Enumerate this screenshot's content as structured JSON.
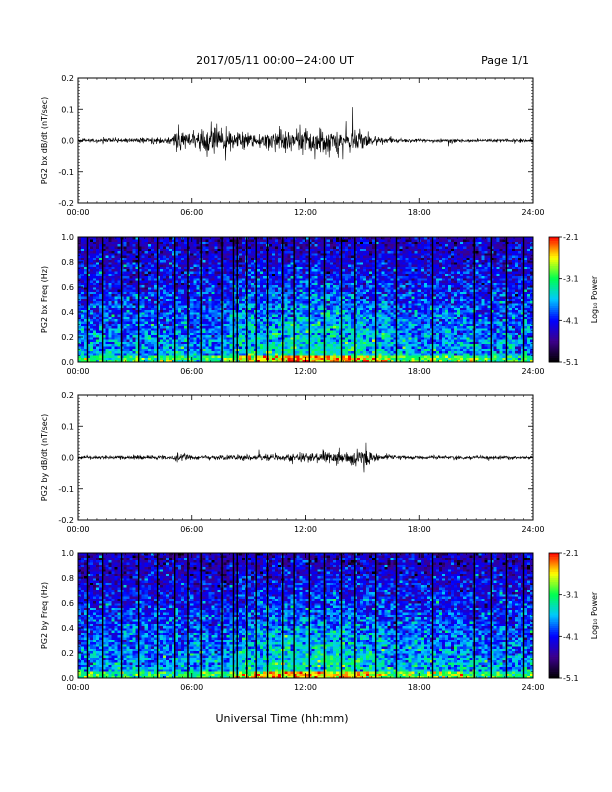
{
  "header": {
    "title": "2017/05/11  00:00−24:00 UT",
    "page": "Page 1/1"
  },
  "xlabel": "Universal Time (hh:mm)",
  "chart_data": [
    {
      "type": "line",
      "ylabel": "PG2 bx dB/dt (nT/sec)",
      "xlim": [
        "00:00",
        "24:00"
      ],
      "ylim": [
        -0.2,
        0.2
      ],
      "xticks": [
        "00:00",
        "06:00",
        "12:00",
        "18:00",
        "24:00"
      ],
      "yticks": [
        "-0.2",
        "-0.1",
        "0.0",
        "0.1",
        "0.2"
      ],
      "envelope": {
        "hours": [
          0,
          1,
          2,
          3,
          4,
          5,
          5.2,
          6,
          6.7,
          7,
          7.5,
          8,
          8.5,
          9,
          9.5,
          10,
          10.5,
          11,
          11.5,
          12,
          12.5,
          13,
          13.5,
          14,
          14.5,
          15,
          15.5,
          16,
          17,
          18,
          19,
          20,
          21,
          22,
          23,
          24
        ],
        "amplitude": [
          0.006,
          0.007,
          0.008,
          0.009,
          0.01,
          0.015,
          0.045,
          0.03,
          0.04,
          0.05,
          0.04,
          0.035,
          0.03,
          0.025,
          0.025,
          0.035,
          0.04,
          0.045,
          0.04,
          0.045,
          0.04,
          0.04,
          0.04,
          0.045,
          0.05,
          0.045,
          0.02,
          0.01,
          0.007,
          0.006,
          0.006,
          0.006,
          0.006,
          0.006,
          0.006,
          0.006
        ]
      }
    },
    {
      "type": "heatmap",
      "ylabel": "PG2 bx Freq (Hz)",
      "xlim": [
        "00:00",
        "24:00"
      ],
      "ylim": [
        0.0,
        1.0
      ],
      "xticks": [
        "00:00",
        "06:00",
        "12:00",
        "18:00",
        "24:00"
      ],
      "yticks": [
        "0.0",
        "0.2",
        "0.4",
        "0.6",
        "0.8",
        "1.0"
      ],
      "colorbar": {
        "label": "Log₁₀ Power",
        "ticks": [
          "-2.1",
          "-3.1",
          "-4.1",
          "-5.1"
        ],
        "range": [
          -5.1,
          -2.1
        ]
      },
      "gap_hours": [
        0.5,
        1.3,
        2.3,
        3.2,
        4.2,
        5.1,
        5.8,
        6.5,
        7.6,
        8.2,
        8.4,
        8.9,
        9.4,
        10.0,
        10.8,
        11.4,
        12.2,
        13.0,
        13.9,
        14.6,
        15.7,
        16.8,
        18.7,
        20.9,
        21.8,
        22.6,
        23.5
      ]
    },
    {
      "type": "line",
      "ylabel": "PG2 by dB/dt (nT/sec)",
      "xlim": [
        "00:00",
        "24:00"
      ],
      "ylim": [
        -0.2,
        0.2
      ],
      "xticks": [
        "00:00",
        "06:00",
        "12:00",
        "18:00",
        "24:00"
      ],
      "yticks": [
        "-0.2",
        "-0.1",
        "0.0",
        "0.1",
        "0.2"
      ],
      "envelope": {
        "hours": [
          0,
          1,
          2,
          3,
          4,
          5,
          5.3,
          5.8,
          6,
          7,
          8,
          9,
          10,
          11,
          12,
          13,
          13.5,
          14,
          14.5,
          15,
          15.2,
          15.5,
          16,
          17,
          18,
          19,
          20,
          21,
          22,
          23,
          24
        ],
        "amplitude": [
          0.005,
          0.006,
          0.006,
          0.007,
          0.008,
          0.008,
          0.02,
          0.012,
          0.008,
          0.008,
          0.009,
          0.01,
          0.012,
          0.012,
          0.015,
          0.018,
          0.02,
          0.025,
          0.03,
          0.035,
          0.05,
          0.015,
          0.01,
          0.008,
          0.007,
          0.006,
          0.006,
          0.006,
          0.006,
          0.005,
          0.005
        ]
      }
    },
    {
      "type": "heatmap",
      "ylabel": "PG2 by Freq (Hz)",
      "xlim": [
        "00:00",
        "24:00"
      ],
      "ylim": [
        0.0,
        1.0
      ],
      "xticks": [
        "00:00",
        "06:00",
        "12:00",
        "18:00",
        "24:00"
      ],
      "yticks": [
        "0.0",
        "0.2",
        "0.4",
        "0.6",
        "0.8",
        "1.0"
      ],
      "colorbar": {
        "label": "Log₁₀ Power",
        "ticks": [
          "-2.1",
          "-3.1",
          "-4.1",
          "-5.1"
        ],
        "range": [
          -5.1,
          -2.1
        ]
      },
      "gap_hours": [
        0.5,
        1.3,
        2.3,
        3.2,
        4.2,
        5.1,
        5.8,
        6.5,
        7.6,
        8.2,
        8.4,
        8.9,
        9.4,
        10.0,
        10.8,
        11.4,
        12.2,
        13.0,
        13.9,
        14.6,
        15.7,
        16.8,
        18.7,
        20.9,
        21.8,
        22.6,
        23.5
      ]
    }
  ]
}
